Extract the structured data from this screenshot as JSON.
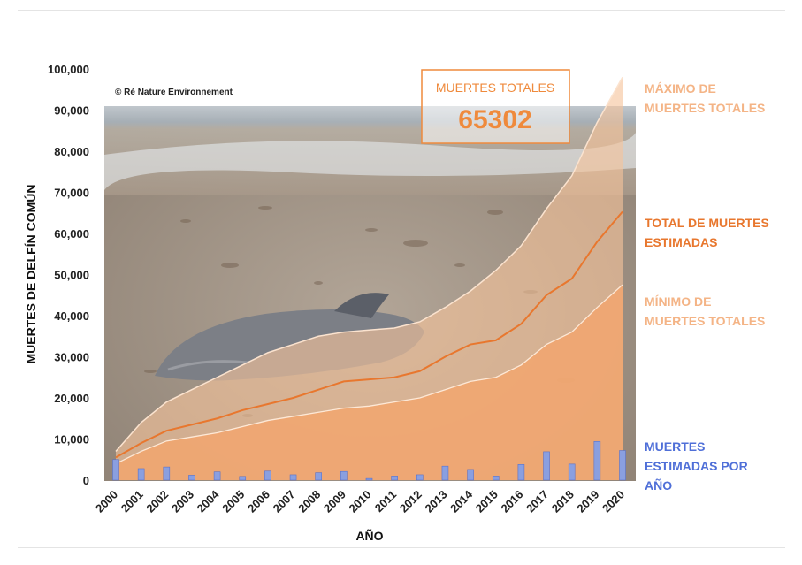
{
  "chart_data": {
    "type": "area",
    "x": [
      2000,
      2001,
      2002,
      2003,
      2004,
      2005,
      2006,
      2007,
      2008,
      2009,
      2010,
      2011,
      2012,
      2013,
      2014,
      2015,
      2016,
      2017,
      2018,
      2019,
      2020
    ],
    "x_tick_labels": [
      "2000",
      "2001",
      "2002",
      "2003",
      "2004",
      "2005",
      "2006",
      "2007",
      "2008",
      "2009",
      "2010",
      "2011",
      "2012",
      "2013",
      "2014",
      "2015",
      "2016",
      "2017",
      "2018",
      "2019",
      "2020"
    ],
    "xlabel": "AÑO",
    "ylabel": "MUERTES DE DELFÍN COMÚN",
    "ylim": [
      0,
      100000
    ],
    "y_tick_labels": [
      "0",
      "10,000",
      "20,000",
      "30,000",
      "40,000",
      "50,000",
      "60,000",
      "70,000",
      "80,000",
      "90,000",
      "100,000"
    ],
    "y_tick_values": [
      0,
      10000,
      20000,
      30000,
      40000,
      50000,
      60000,
      70000,
      80000,
      90000,
      100000
    ],
    "series": [
      {
        "name": "MÁXIMO DE MUERTES TOTALES",
        "kind": "area",
        "color": "#f5c49b",
        "values": [
          7000,
          14000,
          19000,
          22000,
          25000,
          28000,
          31000,
          33000,
          35000,
          36000,
          36500,
          37000,
          38500,
          42000,
          46000,
          51000,
          57000,
          66000,
          74000,
          87000,
          98000
        ]
      },
      {
        "name": "TOTAL DE MUERTES ESTIMADAS",
        "kind": "line",
        "color": "#e8772e",
        "values": [
          5500,
          9000,
          12000,
          13500,
          15000,
          17000,
          18500,
          20000,
          22000,
          24000,
          24500,
          25000,
          26500,
          30000,
          33000,
          34000,
          38000,
          45000,
          49000,
          58000,
          65302
        ]
      },
      {
        "name": "MÍNIMO DE MUERTES TOTALES",
        "kind": "area",
        "color": "#f2a66e",
        "values": [
          4000,
          7000,
          9500,
          10500,
          11500,
          13000,
          14500,
          15500,
          16500,
          17500,
          18000,
          19000,
          20000,
          22000,
          24000,
          25000,
          28000,
          33000,
          36000,
          42000,
          47500
        ]
      },
      {
        "name": "MUERTES ESTIMADAS POR AÑO",
        "kind": "bar",
        "color": "#8a9fe0",
        "values": [
          5000,
          2800,
          3200,
          1200,
          2000,
          900,
          2200,
          1300,
          1800,
          2100,
          400,
          1000,
          1300,
          3400,
          2600,
          1000,
          3800,
          6900,
          3900,
          9400,
          7200
        ]
      }
    ],
    "grid": false
  },
  "callout": {
    "label": "MUERTES TOTALES",
    "value": "65302"
  },
  "legend": {
    "max": "MÁXIMO DE\nMUERTES TOTALES",
    "total": "TOTAL DE MUERTES\nESTIMADAS",
    "min": "MÍNIMO DE\nMUERTES TOTALES",
    "bars": "MUERTES\nESTIMADAS POR\nAÑO"
  },
  "colors": {
    "max_area": "#f5c49b",
    "total_line": "#e8772e",
    "min_area": "#f2a66e",
    "bars": "#8a9fe0",
    "legend_max": "#f4b486",
    "legend_total": "#e8772e",
    "legend_min": "#f4b486",
    "legend_bars": "#4f6fd8"
  },
  "photo_credit": "© Ré Nature Environnement"
}
